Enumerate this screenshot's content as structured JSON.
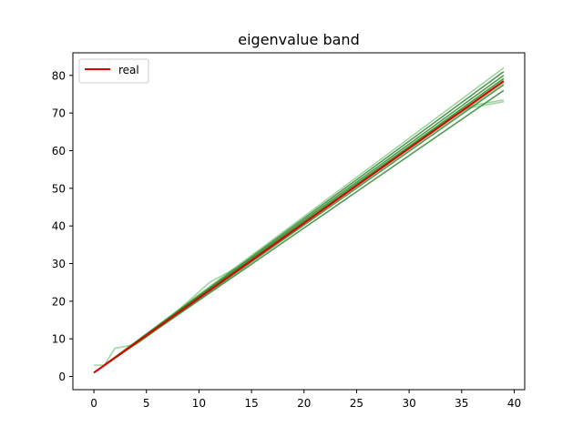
{
  "chart_data": {
    "type": "line",
    "title": "eigenvalue band",
    "xlabel": "",
    "ylabel": "",
    "xlim": [
      -2,
      41
    ],
    "ylim": [
      -3.5,
      86
    ],
    "xticks": [
      0,
      5,
      10,
      15,
      20,
      25,
      30,
      35,
      40
    ],
    "yticks": [
      0,
      10,
      20,
      30,
      40,
      50,
      60,
      70,
      80
    ],
    "legend": {
      "placement": "top-left",
      "entries": [
        "real"
      ]
    },
    "grid": false,
    "colors": {
      "real": "#e00000",
      "band": "#2ca02c",
      "band_dark": "#1b7a1b"
    },
    "series": [
      {
        "name": "real",
        "x": [
          0,
          39
        ],
        "y": [
          1,
          78.5
        ]
      }
    ],
    "band_series": [
      {
        "x": [
          0,
          39
        ],
        "y": [
          1,
          81
        ]
      },
      {
        "x": [
          0,
          39
        ],
        "y": [
          1,
          80
        ]
      },
      {
        "x": [
          0,
          39
        ],
        "y": [
          1,
          79.2
        ]
      },
      {
        "x": [
          0,
          39
        ],
        "y": [
          1,
          77.5
        ]
      },
      {
        "x": [
          0,
          39
        ],
        "y": [
          1,
          76
        ]
      },
      {
        "x": [
          0,
          39
        ],
        "y": [
          1,
          82
        ]
      },
      {
        "x": [
          0,
          30,
          35,
          39
        ],
        "y": [
          1,
          61,
          71,
          73
        ]
      },
      {
        "x": [
          0,
          28,
          33,
          36,
          39
        ],
        "y": [
          1,
          57,
          67,
          72,
          73.5
        ]
      },
      {
        "x": [
          0,
          1,
          2,
          3,
          4,
          5,
          7,
          9,
          11,
          13,
          15,
          39
        ],
        "y": [
          3,
          3,
          7.5,
          8,
          8.5,
          10.5,
          15,
          20,
          25,
          28,
          31,
          78
        ]
      },
      {
        "x": [
          0,
          2,
          5,
          10,
          39
        ],
        "y": [
          1,
          5,
          10.5,
          21,
          79
        ]
      }
    ]
  }
}
